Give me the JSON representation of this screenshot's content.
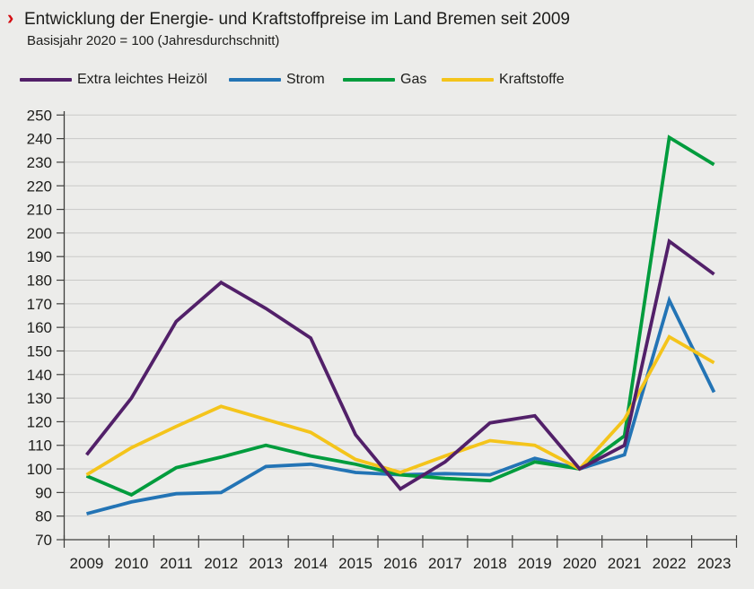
{
  "header": {
    "marker": "›",
    "title": "Entwicklung der Energie- und Kraftstoffpreise im Land Bremen seit 2009",
    "subtitle": "Basisjahr 2020 = 100 (Jahresdurchschnitt)"
  },
  "colors": {
    "background": "#ececea",
    "grid": "#c9c9c7",
    "axis": "#3e3e3c",
    "text": "#1d1d1b",
    "marker_red": "#d40d12"
  },
  "chart_data": {
    "type": "line",
    "title": "Entwicklung der Energie- und Kraftstoffpreise im Land Bremen seit 2009",
    "subtitle": "Basisjahr 2020 = 100 (Jahresdurchschnitt)",
    "x": [
      2009,
      2010,
      2011,
      2012,
      2013,
      2014,
      2015,
      2016,
      2017,
      2018,
      2019,
      2020,
      2021,
      2022,
      2023
    ],
    "series": [
      {
        "name": "Extra leichtes Heizöl",
        "color": "#522069",
        "values": [
          106,
          130,
          162.5,
          179,
          168,
          155.5,
          114.5,
          91.5,
          103,
          119.5,
          122.5,
          100,
          110,
          196.5,
          182.5
        ]
      },
      {
        "name": "Strom",
        "color": "#2374b5",
        "values": [
          81,
          86,
          89.5,
          90,
          101,
          102,
          98.5,
          97.5,
          98,
          97.5,
          104.5,
          100,
          106,
          171.5,
          132.5
        ]
      },
      {
        "name": "Gas",
        "color": "#009c3d",
        "values": [
          97,
          89,
          100.5,
          105,
          110,
          105.5,
          102,
          97.5,
          96,
          95,
          103,
          100,
          114,
          240.5,
          229
        ]
      },
      {
        "name": "Kraftstoffe",
        "color": "#f4c41b",
        "values": [
          97.5,
          109,
          118,
          126.5,
          121,
          115.5,
          104,
          98.5,
          105.5,
          112,
          110,
          100,
          121,
          156,
          145
        ]
      }
    ],
    "ylim": [
      70,
      250
    ],
    "yticks": [
      250,
      240,
      230,
      220,
      210,
      200,
      190,
      180,
      170,
      160,
      150,
      140,
      130,
      120,
      110,
      100,
      90,
      80,
      70
    ],
    "grid": "horizontal",
    "legend_position": "top"
  }
}
